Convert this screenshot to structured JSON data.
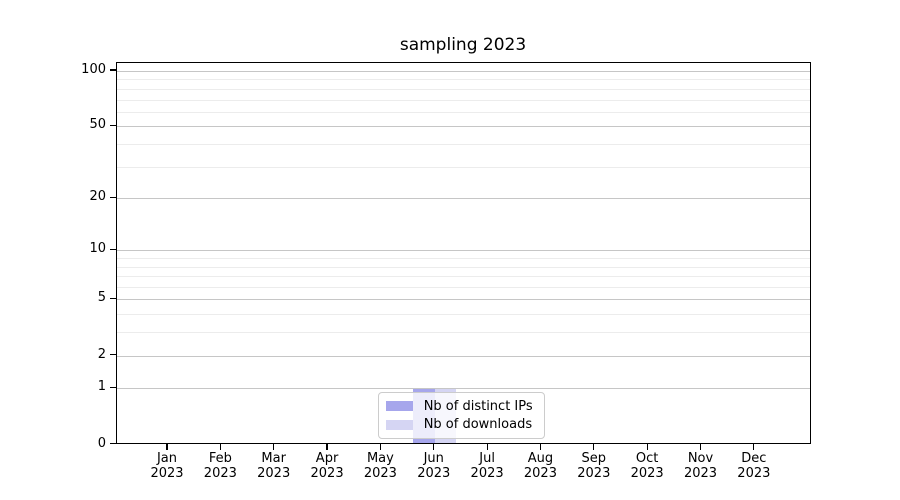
{
  "chart_data": {
    "type": "bar",
    "title": "sampling 2023",
    "x_months": [
      "Jan",
      "Feb",
      "Mar",
      "Apr",
      "May",
      "Jun",
      "Jul",
      "Aug",
      "Sep",
      "Oct",
      "Nov",
      "Dec"
    ],
    "x_year": "2023",
    "categories": [
      "Jan 2023",
      "Feb 2023",
      "Mar 2023",
      "Apr 2023",
      "May 2023",
      "Jun 2023",
      "Jul 2023",
      "Aug 2023",
      "Sep 2023",
      "Oct 2023",
      "Nov 2023",
      "Dec 2023"
    ],
    "series": [
      {
        "name": "Nb of distinct IPs",
        "color": "#a6a6ec",
        "values": [
          0,
          0,
          0,
          0,
          0,
          1,
          0,
          0,
          0,
          0,
          0,
          0
        ]
      },
      {
        "name": "Nb of downloads",
        "color": "#d5d5f3",
        "values": [
          0,
          0,
          0,
          0,
          0,
          1,
          0,
          0,
          0,
          0,
          0,
          0
        ]
      }
    ],
    "yscale": "log1p",
    "ylim": [
      0,
      110
    ],
    "y_ticks": [
      0,
      1,
      2,
      5,
      10,
      20,
      50,
      100
    ],
    "y_minor_ticks": [
      3,
      4,
      6,
      7,
      8,
      9,
      30,
      40,
      60,
      70,
      80,
      90
    ],
    "grid": "both",
    "legend_position": "lower center",
    "xlabel": "",
    "ylabel": ""
  },
  "colors": {
    "grid_major": "#c6c6c6",
    "grid_minor": "#ececec",
    "spine": "#000000",
    "background": "#ffffff",
    "legend_border": "#cccccc"
  }
}
